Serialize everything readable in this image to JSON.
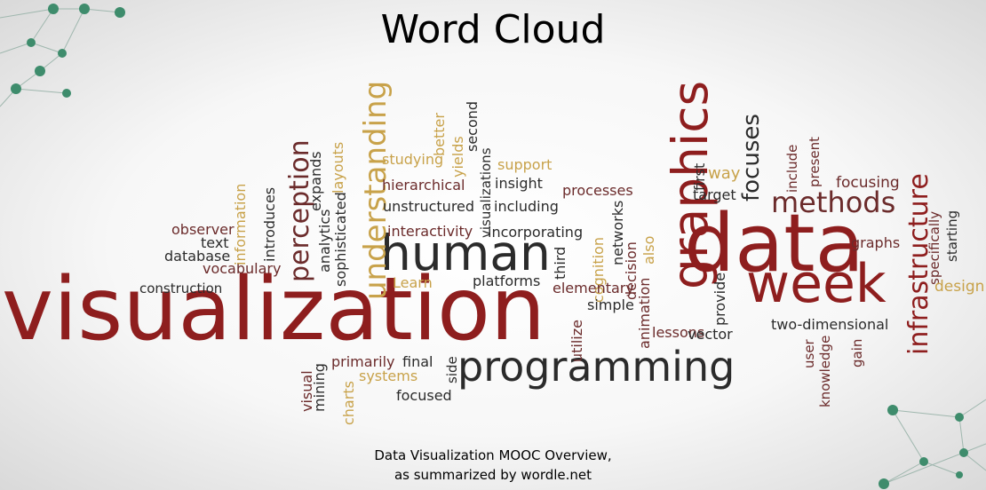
{
  "title": "Word Cloud",
  "caption_line1": "Data Visualization MOOC Overview,",
  "caption_line2": "as summarized by wordle.net",
  "colors": {
    "dark": "#2b2b2b",
    "red": "#8e1e1e",
    "brown": "#6b2b2b",
    "gold": "#c8a24a",
    "teal": "#4e9e7e"
  },
  "words": [
    {
      "text": "visualization",
      "color": "red"
    },
    {
      "text": "programming",
      "color": "dark"
    },
    {
      "text": "human",
      "color": "dark"
    },
    {
      "text": "data",
      "color": "red"
    },
    {
      "text": "week",
      "color": "red"
    },
    {
      "text": "graphics",
      "color": "red"
    },
    {
      "text": "understanding",
      "color": "gold"
    },
    {
      "text": "perception",
      "color": "brown"
    },
    {
      "text": "methods",
      "color": "brown"
    },
    {
      "text": "focuses",
      "color": "dark"
    },
    {
      "text": "infrastructure",
      "color": "red"
    },
    {
      "text": "observer",
      "color": "brown"
    },
    {
      "text": "text",
      "color": "dark"
    },
    {
      "text": "database",
      "color": "dark"
    },
    {
      "text": "vocabulary",
      "color": "brown"
    },
    {
      "text": "construction",
      "color": "dark"
    },
    {
      "text": "information",
      "color": "gold"
    },
    {
      "text": "introduces",
      "color": "dark"
    },
    {
      "text": "analytics",
      "color": "dark"
    },
    {
      "text": "expands",
      "color": "dark"
    },
    {
      "text": "sophisticated",
      "color": "dark"
    },
    {
      "text": "layouts",
      "color": "gold"
    },
    {
      "text": "studying",
      "color": "gold"
    },
    {
      "text": "hierarchical",
      "color": "brown"
    },
    {
      "text": "unstructured",
      "color": "dark"
    },
    {
      "text": "interactivity",
      "color": "brown"
    },
    {
      "text": "better",
      "color": "gold"
    },
    {
      "text": "yields",
      "color": "gold"
    },
    {
      "text": "second",
      "color": "dark"
    },
    {
      "text": "visualizations",
      "color": "dark"
    },
    {
      "text": "support",
      "color": "gold"
    },
    {
      "text": "insight",
      "color": "dark"
    },
    {
      "text": "including",
      "color": "dark"
    },
    {
      "text": "incorporating",
      "color": "dark"
    },
    {
      "text": "processes",
      "color": "brown"
    },
    {
      "text": "Learn",
      "color": "gold"
    },
    {
      "text": "platforms",
      "color": "dark"
    },
    {
      "text": "third",
      "color": "dark"
    },
    {
      "text": "networks",
      "color": "dark"
    },
    {
      "text": "cognition",
      "color": "gold"
    },
    {
      "text": "decision",
      "color": "brown"
    },
    {
      "text": "also",
      "color": "gold"
    },
    {
      "text": "elementary",
      "color": "brown"
    },
    {
      "text": "animation",
      "color": "brown"
    },
    {
      "text": "simple",
      "color": "dark"
    },
    {
      "text": "utilize",
      "color": "brown"
    },
    {
      "text": "lessons",
      "color": "brown"
    },
    {
      "text": "provide",
      "color": "dark"
    },
    {
      "text": "vector",
      "color": "dark"
    },
    {
      "text": "first",
      "color": "dark"
    },
    {
      "text": "way",
      "color": "gold"
    },
    {
      "text": "target",
      "color": "dark"
    },
    {
      "text": "include",
      "color": "brown"
    },
    {
      "text": "present",
      "color": "brown"
    },
    {
      "text": "focusing",
      "color": "brown"
    },
    {
      "text": "specifically",
      "color": "brown"
    },
    {
      "text": "starting",
      "color": "dark"
    },
    {
      "text": "graphs",
      "color": "brown"
    },
    {
      "text": "design",
      "color": "gold"
    },
    {
      "text": "two-dimensional",
      "color": "dark"
    },
    {
      "text": "user",
      "color": "brown"
    },
    {
      "text": "knowledge",
      "color": "brown"
    },
    {
      "text": "gain",
      "color": "brown"
    },
    {
      "text": "visual",
      "color": "brown"
    },
    {
      "text": "mining",
      "color": "dark"
    },
    {
      "text": "charts",
      "color": "gold"
    },
    {
      "text": "primarily",
      "color": "brown"
    },
    {
      "text": "systems",
      "color": "gold"
    },
    {
      "text": "final",
      "color": "dark"
    },
    {
      "text": "side",
      "color": "dark"
    },
    {
      "text": "focused",
      "color": "dark"
    }
  ]
}
